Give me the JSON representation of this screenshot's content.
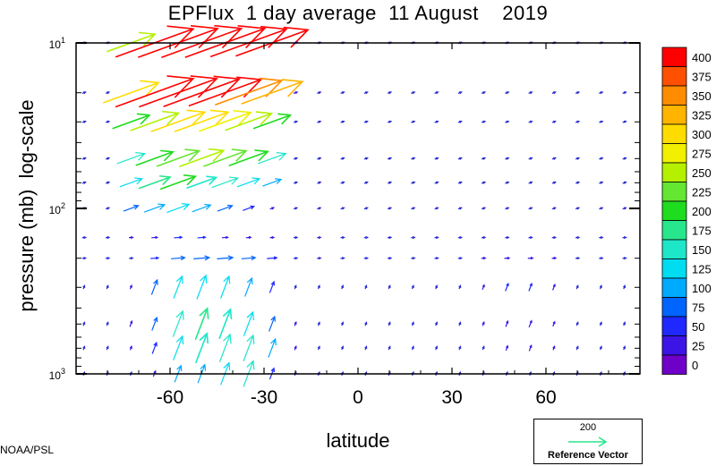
{
  "chart_data": {
    "type": "vector-field",
    "title": "EPFlux  1 day average  11 August    2019",
    "xlabel": "latitude",
    "ylabel": "pressure (mb)  log-scale",
    "xlim": [
      -90,
      90
    ],
    "ylim": [
      1000,
      10
    ],
    "y_scale": "log",
    "x_ticks": [
      -60,
      -30,
      0,
      30,
      60
    ],
    "x_tick_labels": [
      "-60",
      "-30",
      "0",
      "30",
      "60"
    ],
    "y_tick_labels": [
      {
        "value": 10,
        "base": "10",
        "exp": "1"
      },
      {
        "value": 100,
        "base": "10",
        "exp": "2"
      },
      {
        "value": 1000,
        "base": "10",
        "exp": "3"
      }
    ],
    "colorbar": {
      "levels": [
        "400",
        "375",
        "350",
        "325",
        "300",
        "275",
        "250",
        "225",
        "200",
        "175",
        "150",
        "125",
        "100",
        "75",
        "50",
        "25",
        "0"
      ],
      "colors": [
        "#ff0000",
        "#ff5000",
        "#ff8c00",
        "#ffb400",
        "#ffdc00",
        "#f0f000",
        "#b4f000",
        "#64e632",
        "#1edc1e",
        "#28e68c",
        "#1ee6c8",
        "#00dcf0",
        "#00aaff",
        "#0064ff",
        "#1e28ff",
        "#3c14e6",
        "#6e00c8"
      ]
    },
    "reference_vector": {
      "value": "200",
      "label": "Reference Vector"
    },
    "vectors": {
      "lats": [
        -87.5,
        -80,
        -72.5,
        -65,
        -57.5,
        -50,
        -42.5,
        -35,
        -27.5,
        -20,
        -12.5,
        -5,
        2.5,
        10,
        17.5,
        25,
        32.5,
        40,
        47.5,
        55,
        62.5,
        70,
        77.5,
        85
      ],
      "levels": [
        10,
        20,
        30,
        50,
        70,
        100,
        150,
        200,
        300,
        500,
        700,
        1000
      ],
      "rows": [
        {
          "p": 10,
          "mags": [
            5,
            10,
            260,
            420,
            430,
            440,
            430,
            410,
            390,
            20,
            10,
            8,
            8,
            8,
            8,
            8,
            8,
            8,
            8,
            8,
            8,
            8,
            8,
            8
          ]
        },
        {
          "p": 20,
          "mags": [
            5,
            10,
            300,
            420,
            420,
            410,
            390,
            360,
            330,
            20,
            10,
            8,
            8,
            8,
            8,
            8,
            8,
            8,
            8,
            8,
            8,
            8,
            8,
            8
          ]
        },
        {
          "p": 30,
          "mags": [
            5,
            10,
            200,
            260,
            290,
            290,
            280,
            250,
            200,
            15,
            10,
            8,
            8,
            8,
            8,
            8,
            8,
            8,
            8,
            8,
            8,
            8,
            8,
            8
          ]
        },
        {
          "p": 50,
          "mags": [
            5,
            10,
            150,
            200,
            230,
            240,
            230,
            210,
            150,
            12,
            8,
            8,
            8,
            8,
            8,
            8,
            8,
            8,
            8,
            8,
            8,
            8,
            8,
            8
          ]
        },
        {
          "p": 70,
          "mags": [
            5,
            8,
            120,
            170,
            190,
            160,
            140,
            120,
            100,
            10,
            8,
            8,
            8,
            8,
            8,
            8,
            8,
            8,
            8,
            8,
            8,
            8,
            8,
            8
          ]
        },
        {
          "p": 100,
          "mags": [
            5,
            8,
            80,
            110,
            120,
            100,
            80,
            60,
            20,
            8,
            8,
            8,
            8,
            8,
            8,
            8,
            8,
            8,
            8,
            8,
            8,
            8,
            8,
            8
          ]
        },
        {
          "p": 150,
          "mags": [
            5,
            8,
            20,
            30,
            40,
            40,
            30,
            25,
            20,
            8,
            8,
            8,
            8,
            8,
            8,
            8,
            8,
            8,
            8,
            8,
            8,
            8,
            8,
            8
          ]
        },
        {
          "p": 200,
          "mags": [
            5,
            8,
            15,
            40,
            70,
            80,
            80,
            70,
            50,
            15,
            8,
            8,
            8,
            8,
            8,
            8,
            8,
            20,
            25,
            25,
            20,
            8,
            8,
            8
          ]
        },
        {
          "p": 300,
          "mags": [
            5,
            8,
            20,
            80,
            120,
            130,
            120,
            100,
            60,
            15,
            8,
            8,
            8,
            8,
            8,
            8,
            8,
            25,
            40,
            40,
            30,
            8,
            8,
            8
          ]
        },
        {
          "p": 500,
          "mags": [
            5,
            10,
            30,
            70,
            140,
            170,
            160,
            130,
            80,
            20,
            8,
            8,
            8,
            8,
            8,
            8,
            8,
            20,
            30,
            35,
            25,
            8,
            8,
            8
          ]
        },
        {
          "p": 700,
          "mags": [
            5,
            10,
            20,
            60,
            130,
            160,
            150,
            140,
            100,
            20,
            8,
            8,
            8,
            8,
            8,
            8,
            8,
            15,
            25,
            30,
            20,
            8,
            8,
            8
          ]
        },
        {
          "p": 1000,
          "mags": [
            5,
            8,
            15,
            30,
            90,
            100,
            120,
            140,
            60,
            15,
            8,
            8,
            8,
            8,
            8,
            8,
            8,
            10,
            15,
            15,
            10,
            8,
            8,
            8
          ]
        }
      ],
      "direction_note": "arrows point poleward-downward (stratosphere) or upward-equatorward (troposphere)"
    }
  },
  "footer": {
    "credit": "NOAA/PSL"
  }
}
